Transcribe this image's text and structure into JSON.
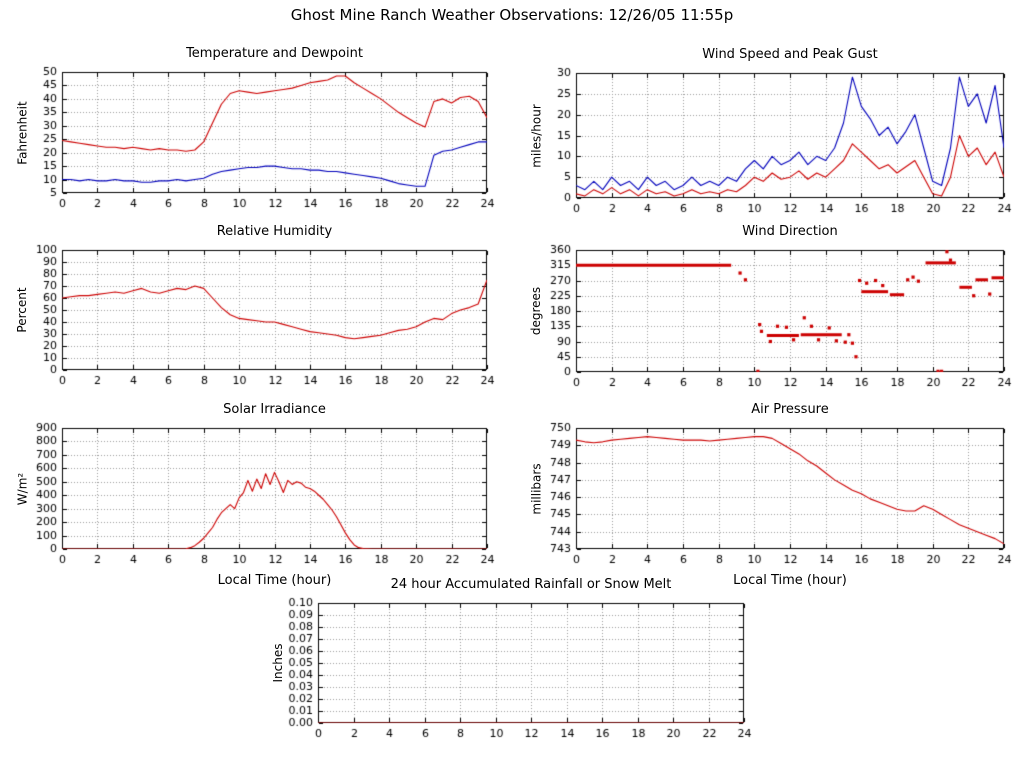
{
  "page_title": "Ghost Mine Ranch Weather Observations: 12/26/05 11:55p",
  "colors": {
    "primary_series": "#cc0000",
    "secondary_series": "#0000bb",
    "grid": "#999999",
    "axis": "#000000"
  },
  "chart_data": [
    {
      "id": "temperature-dewpoint",
      "type": "line",
      "title": "Temperature and Dewpoint",
      "ylabel": "Fahrenheit",
      "xlabel": "",
      "xlim": [
        0,
        24
      ],
      "xtick": 2,
      "ylim": [
        5,
        50
      ],
      "ytick": 5,
      "grid": true,
      "legend": "none",
      "series": [
        {
          "name": "Temperature",
          "color": "#cc0000",
          "x_start": 0,
          "x_step": 0.5,
          "y": [
            24.5,
            24,
            23.5,
            23,
            22.5,
            22,
            22,
            21.5,
            22,
            21.5,
            21,
            21.5,
            21,
            21,
            20.5,
            21,
            24,
            31,
            38,
            42,
            43,
            42.5,
            42,
            42.5,
            43,
            43.5,
            44,
            45,
            46,
            46.5,
            47,
            48.5,
            48.5,
            46,
            44,
            42,
            40,
            37.5,
            35,
            33,
            31,
            29.5,
            39,
            40,
            38.5,
            40.5,
            41,
            39,
            33
          ]
        },
        {
          "name": "Dewpoint",
          "color": "#0000bb",
          "x_start": 0,
          "x_step": 0.5,
          "y": [
            10,
            10,
            9.5,
            10,
            9.5,
            9.5,
            10,
            9.5,
            9.5,
            9,
            9,
            9.5,
            9.5,
            10,
            9.5,
            10,
            10.5,
            12,
            13,
            13.5,
            14,
            14.5,
            14.5,
            15,
            15,
            14.5,
            14,
            14,
            13.5,
            13.5,
            13,
            13,
            12.5,
            12,
            11.5,
            11,
            10.5,
            9.5,
            8.5,
            8,
            7.5,
            7.5,
            19,
            20.5,
            21,
            22,
            23,
            24,
            24
          ]
        }
      ]
    },
    {
      "id": "wind-speed-gust",
      "type": "line",
      "title": "Wind Speed and Peak Gust",
      "ylabel": "miles/hour",
      "xlabel": "",
      "xlim": [
        0,
        24
      ],
      "xtick": 2,
      "ylim": [
        0,
        30
      ],
      "ytick": 5,
      "grid": true,
      "legend": "none",
      "series": [
        {
          "name": "Peak Gust",
          "color": "#0000bb",
          "x_start": 0,
          "x_step": 0.5,
          "y": [
            3,
            2,
            4,
            2,
            5,
            3,
            4,
            2,
            5,
            3,
            4,
            2,
            3,
            5,
            3,
            4,
            3,
            5,
            4,
            7,
            9,
            7,
            10,
            8,
            9,
            11,
            8,
            10,
            9,
            12,
            18,
            29,
            22,
            19,
            15,
            17,
            13,
            16,
            20,
            12,
            4,
            3,
            12,
            29,
            22,
            25,
            18,
            27,
            12
          ]
        },
        {
          "name": "Wind Speed",
          "color": "#cc0000",
          "x_start": 0,
          "x_step": 0.5,
          "y": [
            1,
            0.5,
            2,
            1,
            2.5,
            1,
            2,
            0.5,
            2,
            1,
            1.5,
            0.5,
            1,
            2,
            1,
            1.5,
            1,
            2,
            1.5,
            3,
            5,
            4,
            6,
            4.5,
            5,
            6.5,
            4.5,
            6,
            5,
            7,
            9,
            13,
            11,
            9,
            7,
            8,
            6,
            7.5,
            9,
            5,
            1,
            0.5,
            5,
            15,
            10,
            12,
            8,
            11,
            5
          ]
        }
      ]
    },
    {
      "id": "relative-humidity",
      "type": "line",
      "title": "Relative Humidity",
      "ylabel": "Percent",
      "xlabel": "",
      "xlim": [
        0,
        24
      ],
      "xtick": 2,
      "ylim": [
        0,
        100
      ],
      "ytick": 10,
      "grid": true,
      "legend": "none",
      "series": [
        {
          "name": "Relative Humidity",
          "color": "#cc0000",
          "x_start": 0,
          "x_step": 0.5,
          "y": [
            60,
            61,
            62,
            62,
            63,
            64,
            65,
            64,
            66,
            68,
            65,
            64,
            66,
            68,
            67,
            70,
            68,
            60,
            52,
            46,
            43,
            42,
            41,
            40,
            40,
            38,
            36,
            34,
            32,
            31,
            30,
            29,
            27,
            26,
            27,
            28,
            29,
            31,
            33,
            34,
            36,
            40,
            43,
            42,
            47,
            50,
            52,
            55,
            75
          ]
        }
      ]
    },
    {
      "id": "wind-direction",
      "type": "scatter",
      "title": "Wind Direction",
      "ylabel": "degrees",
      "xlabel": "",
      "xlim": [
        0,
        24
      ],
      "xtick": 2,
      "ylim": [
        0,
        360
      ],
      "ytick": 45,
      "grid": true,
      "legend": "none",
      "point_color": "#cc0000",
      "segments": [
        [
          0,
          8.7,
          315
        ],
        [
          10.7,
          12.5,
          108
        ],
        [
          12.6,
          14.9,
          110
        ],
        [
          16.0,
          17.5,
          237
        ],
        [
          17.6,
          18.4,
          228
        ],
        [
          19.6,
          21.3,
          322
        ],
        [
          21.5,
          22.2,
          250
        ],
        [
          22.4,
          23.1,
          272
        ],
        [
          23.3,
          24.0,
          278
        ]
      ],
      "points": [
        [
          9.2,
          292
        ],
        [
          9.5,
          272
        ],
        [
          10.2,
          2
        ],
        [
          10.3,
          140
        ],
        [
          10.4,
          120
        ],
        [
          10.9,
          90
        ],
        [
          11.3,
          135
        ],
        [
          11.8,
          132
        ],
        [
          12.2,
          95
        ],
        [
          12.8,
          160
        ],
        [
          13.2,
          135
        ],
        [
          13.6,
          95
        ],
        [
          14.2,
          130
        ],
        [
          14.6,
          92
        ],
        [
          15.1,
          88
        ],
        [
          15.3,
          110
        ],
        [
          15.5,
          85
        ],
        [
          15.7,
          45
        ],
        [
          15.9,
          270
        ],
        [
          16.3,
          262
        ],
        [
          16.8,
          270
        ],
        [
          17.2,
          255
        ],
        [
          18.6,
          272
        ],
        [
          18.9,
          280
        ],
        [
          19.2,
          268
        ],
        [
          20.3,
          2
        ],
        [
          20.5,
          2
        ],
        [
          20.8,
          355
        ],
        [
          21.0,
          330
        ],
        [
          22.3,
          225
        ],
        [
          23.2,
          230
        ]
      ]
    },
    {
      "id": "solar-irradiance",
      "type": "line",
      "title": "Solar Irradiance",
      "ylabel": "W/m²",
      "xlabel": "Local Time (hour)",
      "xlim": [
        0,
        24
      ],
      "xtick": 2,
      "ylim": [
        0,
        900
      ],
      "ytick": 100,
      "grid": true,
      "legend": "none",
      "series": [
        {
          "name": "Solar Irradiance",
          "color": "#cc0000",
          "x": [
            0,
            6.5,
            7,
            7.25,
            7.5,
            7.75,
            8,
            8.25,
            8.5,
            8.75,
            9,
            9.25,
            9.5,
            9.75,
            10,
            10.25,
            10.5,
            10.75,
            11,
            11.25,
            11.5,
            11.75,
            12,
            12.25,
            12.5,
            12.75,
            13,
            13.25,
            13.5,
            13.75,
            14,
            14.25,
            14.5,
            14.75,
            15,
            15.25,
            15.5,
            15.75,
            16,
            16.25,
            16.5,
            16.75,
            17,
            17.5,
            24
          ],
          "y": [
            0,
            0,
            2,
            10,
            25,
            50,
            80,
            120,
            160,
            220,
            270,
            300,
            330,
            300,
            380,
            420,
            510,
            430,
            520,
            450,
            560,
            480,
            570,
            500,
            420,
            510,
            480,
            500,
            490,
            460,
            450,
            430,
            400,
            370,
            330,
            290,
            240,
            180,
            120,
            70,
            30,
            10,
            3,
            0,
            0
          ]
        }
      ]
    },
    {
      "id": "air-pressure",
      "type": "line",
      "title": "Air Pressure",
      "ylabel": "millibars",
      "xlabel": "Local Time (hour)",
      "xlim": [
        0,
        24
      ],
      "xtick": 2,
      "ylim": [
        743,
        750
      ],
      "ytick": 1,
      "grid": true,
      "legend": "none",
      "series": [
        {
          "name": "Air Pressure",
          "color": "#cc0000",
          "x_start": 0,
          "x_step": 0.5,
          "y": [
            749.3,
            749.2,
            749.15,
            749.2,
            749.3,
            749.35,
            749.4,
            749.45,
            749.5,
            749.45,
            749.4,
            749.35,
            749.3,
            749.3,
            749.3,
            749.25,
            749.3,
            749.35,
            749.4,
            749.45,
            749.5,
            749.5,
            749.4,
            749.1,
            748.8,
            748.5,
            748.1,
            747.8,
            747.4,
            747.0,
            746.7,
            746.4,
            746.2,
            745.9,
            745.7,
            745.5,
            745.3,
            745.2,
            745.2,
            745.5,
            745.3,
            745.0,
            744.7,
            744.4,
            744.2,
            744.0,
            743.8,
            743.6,
            743.3
          ]
        }
      ]
    },
    {
      "id": "accumulated-rainfall",
      "type": "line",
      "title": "24 hour Accumulated Rainfall or Snow Melt",
      "ylabel": "Inches",
      "xlabel": "",
      "xlim": [
        0,
        24
      ],
      "xtick": 2,
      "ylim": [
        0,
        0.1
      ],
      "ytick": 0.01,
      "grid": true,
      "legend": "none",
      "series": [
        {
          "name": "Accumulated Rainfall",
          "color": "#cc0000",
          "x": [
            0,
            24
          ],
          "y": [
            0,
            0
          ]
        }
      ]
    }
  ]
}
